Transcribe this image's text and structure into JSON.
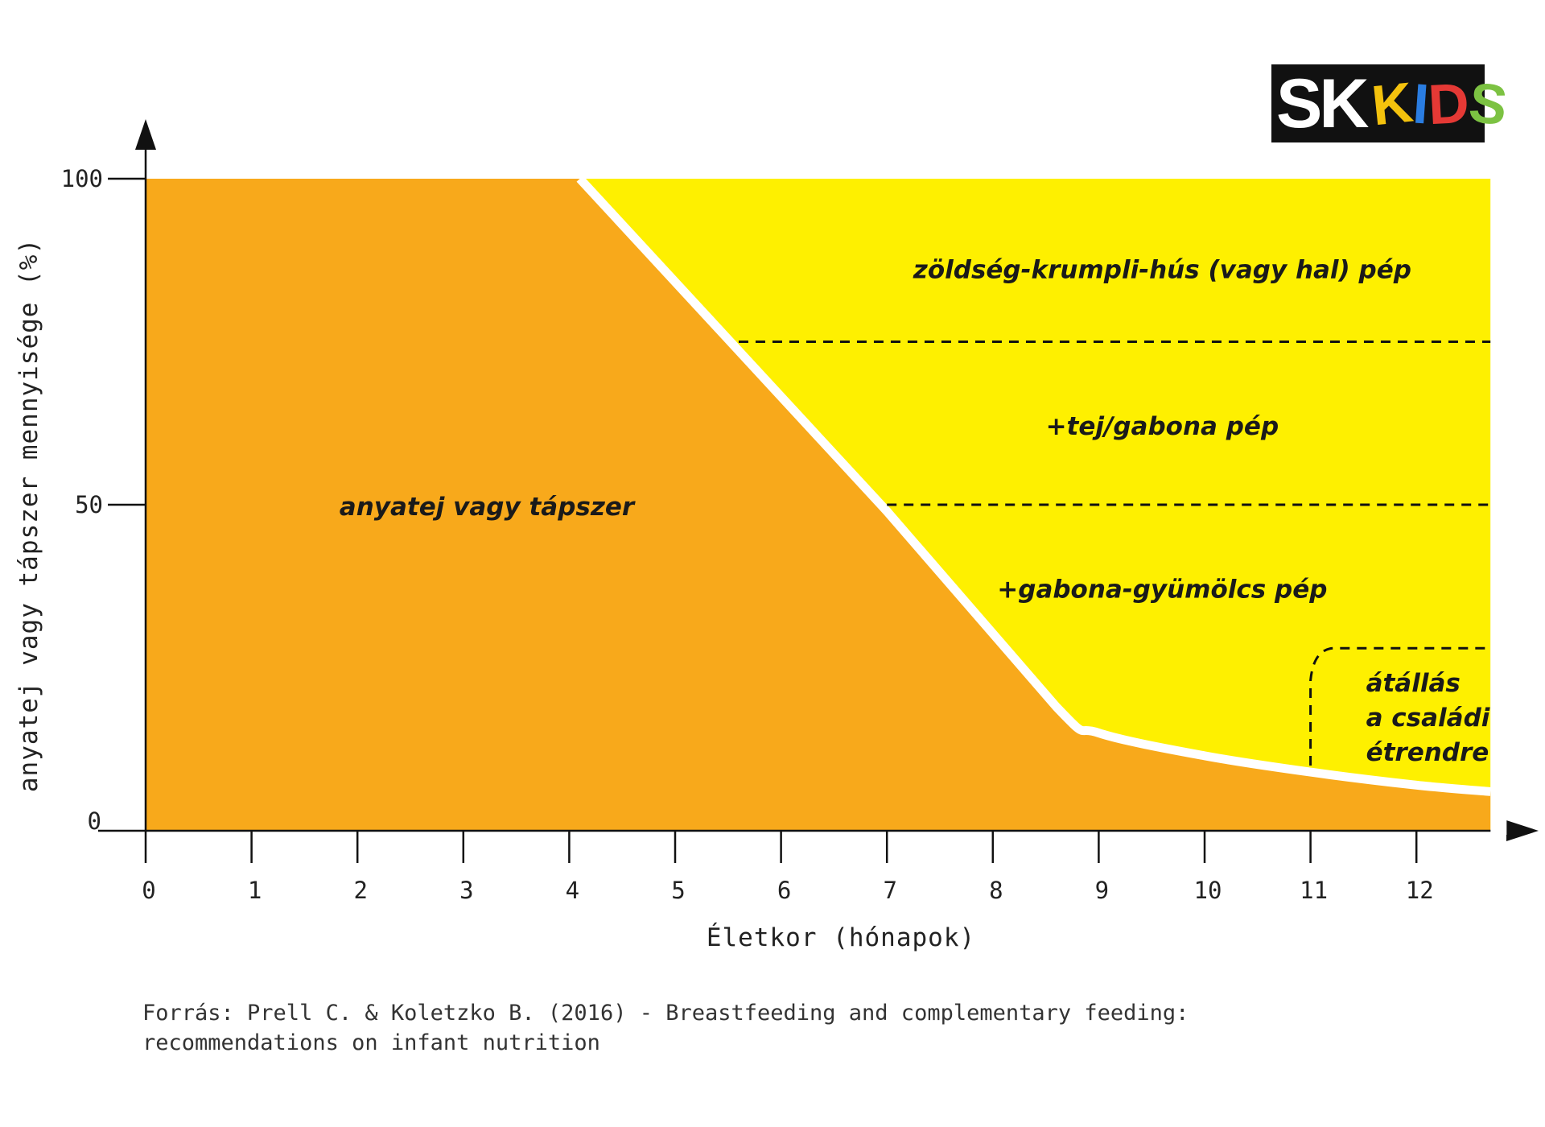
{
  "logo": {
    "text_main": "SK",
    "text_kids": [
      {
        "char": "K",
        "color": "#f4c20d"
      },
      {
        "char": "I",
        "color": "#2a7de1"
      },
      {
        "char": "D",
        "color": "#e53935"
      },
      {
        "char": "S",
        "color": "#7cc242"
      }
    ]
  },
  "colors": {
    "orange": "#f8a91b",
    "yellow": "#fef000",
    "separator": "#ffffff",
    "axis": "#111111",
    "dash": "#111111"
  },
  "chart_data": {
    "type": "area",
    "xlabel": "Életkor (hónapok)",
    "ylabel": "anyatej vagy tápszer mennyisége (%)",
    "x_ticks": [
      "0",
      "1",
      "2",
      "3",
      "4",
      "5",
      "6",
      "7",
      "8",
      "9",
      "10",
      "11",
      "12"
    ],
    "y_ticks": [
      "0",
      "50",
      "100"
    ],
    "xlim": [
      0,
      12.7
    ],
    "ylim": [
      0,
      100
    ],
    "series": [
      {
        "name": "anyatej vagy tápszer",
        "x": [
          0,
          4.1,
          7.0,
          8.6,
          9.0,
          10.0,
          11.0,
          12.0,
          12.7
        ],
        "y": [
          100,
          100,
          49,
          19,
          15,
          11.5,
          9,
          7,
          6
        ]
      }
    ],
    "regions": [
      {
        "label": "zöldség-krumpli-hús (vagy hal) pép",
        "x": 9.6,
        "y": 86
      },
      {
        "label": "+tej/gabona pép",
        "x": 9.6,
        "y": 62
      },
      {
        "label": "+gabona-gyümölcs pép",
        "x": 9.6,
        "y": 37
      },
      {
        "label_lines": [
          "átállás",
          "a családi",
          "étrendre"
        ],
        "x": 11.98,
        "y": 21
      }
    ],
    "dividers": [
      {
        "y": 75,
        "x_start": 5.6,
        "x_end": 12.7
      },
      {
        "y": 50,
        "x_start": 7.0,
        "x_end": 12.7
      }
    ],
    "transition_bracket": {
      "x_start": 11.0,
      "x_end": 12.7,
      "y_top": 28,
      "y_bottom": 10
    }
  },
  "source": {
    "line1": "Forrás: Prell C. & Koletzko B. (2016) - Breastfeeding and complementary feeding:",
    "line2": "recommendations on infant nutrition"
  }
}
